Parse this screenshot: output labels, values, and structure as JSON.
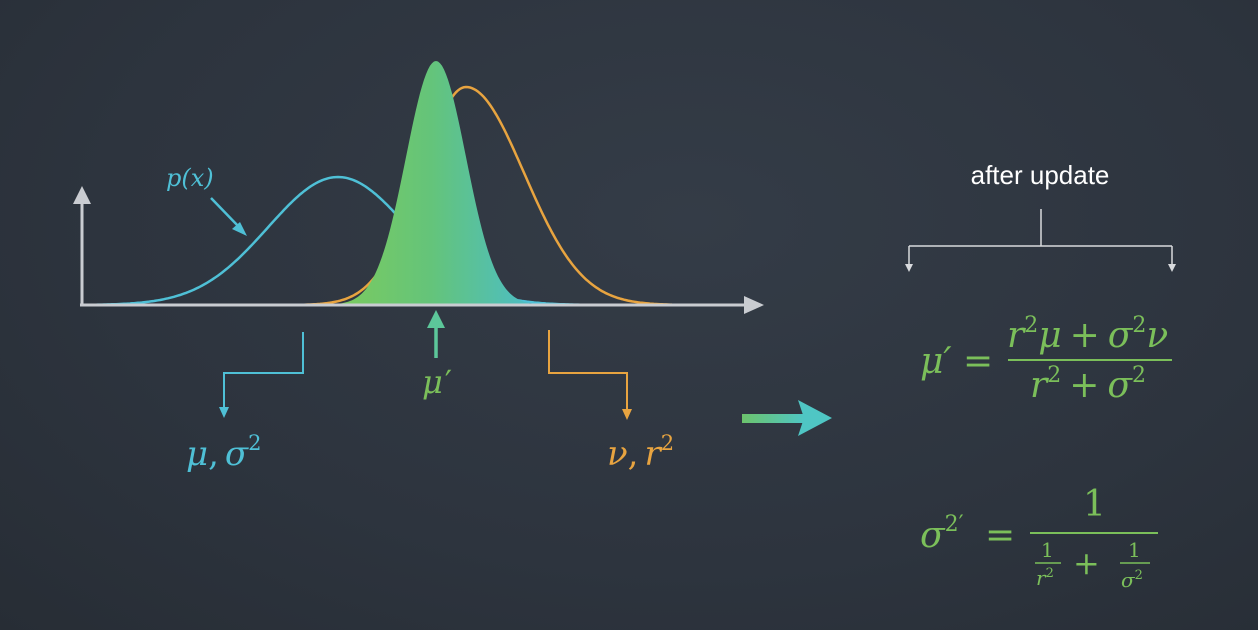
{
  "colors": {
    "background": "#2e353f",
    "prior_curve": "#4fc0d6",
    "measurement_curve": "#e8a440",
    "posterior_green": "#6cc36c",
    "posterior_teal": "#4fc0d0",
    "axis": "#c9ccd1",
    "formula": "#7bbf5a",
    "bracket": "#d8dadd",
    "arrow": "#5cc7a0"
  },
  "diagram": {
    "curve_label": "p(x)",
    "prior_params": "μ, σ²",
    "prior_params_parts": {
      "mu": "μ",
      "comma": ",",
      "sigma": "σ",
      "sq": "2"
    },
    "measurement_params": "ν, r²",
    "measurement_params_parts": {
      "nu": "ν",
      "comma": ",",
      "r": "r",
      "sq": "2"
    },
    "posterior_mean": "μ′",
    "posterior_mean_parts": {
      "mu": "μ",
      "prime": "′"
    }
  },
  "panel": {
    "heading": "after update",
    "formula_mean": "μ′ = (r²μ + σ²ν) / (r² + σ²)",
    "formula_mean_parts": {
      "lhs": "μ′",
      "eq": "=",
      "num": {
        "r": "r",
        "sq1": "2",
        "mu": "μ",
        "plus": "+",
        "sigma": "σ",
        "sq2": "2",
        "nu": "ν"
      },
      "den": {
        "r": "r",
        "sq1": "2",
        "plus": "+",
        "sigma": "σ",
        "sq2": "2"
      }
    },
    "formula_variance": "σ²′ = 1 / (1/r² + 1/σ²)",
    "formula_variance_parts": {
      "lhs_sigma": "σ",
      "lhs_sq": "2′",
      "eq": "=",
      "num": "1",
      "den": {
        "one_a": "1",
        "r": "r",
        "sq1": "2",
        "plus": "+",
        "one_b": "1",
        "sigma": "σ",
        "sq2": "2"
      }
    }
  }
}
